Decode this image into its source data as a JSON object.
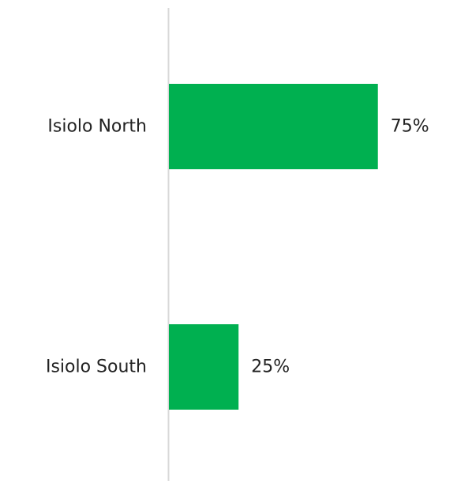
{
  "chart_data": {
    "type": "bar",
    "orientation": "horizontal",
    "categories": [
      "Isiolo North",
      "Isiolo South"
    ],
    "values": [
      75,
      25
    ],
    "value_labels": [
      "75%",
      "25%"
    ],
    "bar_color": "#00b050",
    "axis_color": "#d9d9d9",
    "text_color": "#222222",
    "xlim": [
      0,
      100
    ],
    "grid": false,
    "legend": "none"
  }
}
